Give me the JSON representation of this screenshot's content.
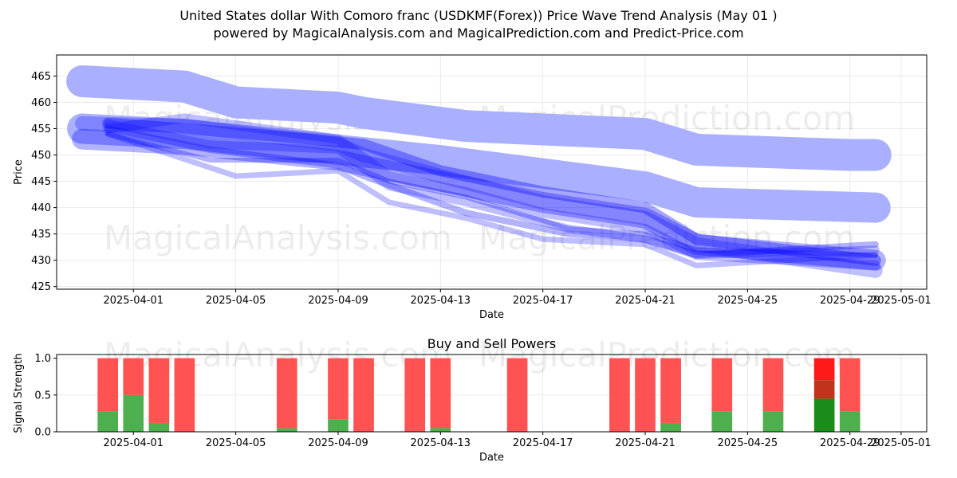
{
  "title_line1": "United States dollar With Comoro franc (USDKMF(Forex)) Price Wave Trend Analysis (May 01 )",
  "title_line2": "powered by MagicalAnalysis.com and MagicalPrediction.com and Predict-Price.com",
  "watermarks": [
    "MagicalAnalysis.com",
    "MagicalPrediction.com"
  ],
  "colors": {
    "wave": "#0000ff",
    "wave_light": "#aab0ff",
    "buy": "#3aa63a",
    "sell": "#ff4a4a",
    "buy_strong": "#1a8c1a",
    "sell_strong": "#ff1a1a",
    "sell_mid": "#c0341d"
  },
  "chart_data": [
    {
      "type": "area",
      "xlabel": "Date",
      "ylabel": "Price",
      "x_ticks": [
        "2025-04-01",
        "2025-04-05",
        "2025-04-09",
        "2025-04-13",
        "2025-04-17",
        "2025-04-21",
        "2025-04-25",
        "2025-04-29",
        "2025-05-01"
      ],
      "y_ticks": [
        425,
        430,
        435,
        440,
        445,
        450,
        455,
        460,
        465
      ],
      "xlim": [
        "2025-03-29",
        "2025-05-02"
      ],
      "ylim": [
        424.5,
        469
      ],
      "grid": true,
      "series": [
        {
          "dates": [
            "2025-03-30",
            "2025-04-03",
            "2025-04-05",
            "2025-04-09",
            "2025-04-10",
            "2025-04-14",
            "2025-04-21",
            "2025-04-23",
            "2025-04-29",
            "2025-04-30"
          ],
          "values": [
            464,
            463,
            460,
            459,
            458,
            455.5,
            454,
            451,
            450,
            450
          ],
          "width": 40,
          "opacity": 0.3
        },
        {
          "dates": [
            "2025-03-30",
            "2025-04-03",
            "2025-04-09",
            "2025-04-13",
            "2025-04-21",
            "2025-04-23",
            "2025-04-30"
          ],
          "values": [
            455,
            454,
            451,
            449,
            444,
            441,
            440
          ],
          "width": 38,
          "opacity": 0.3
        },
        {
          "dates": [
            "2025-03-30",
            "2025-04-03",
            "2025-04-09",
            "2025-04-13",
            "2025-04-17",
            "2025-04-21",
            "2025-04-23",
            "2025-04-30"
          ],
          "values": [
            453,
            452,
            449,
            445,
            441,
            438,
            433,
            430
          ],
          "width": 26,
          "opacity": 0.3
        },
        {
          "dates": [
            "2025-03-30",
            "2025-04-03",
            "2025-04-09",
            "2025-04-10",
            "2025-04-13",
            "2025-04-17",
            "2025-04-21",
            "2025-04-23",
            "2025-04-30"
          ],
          "values": [
            456,
            455.5,
            452,
            450,
            446,
            441,
            438,
            433,
            428
          ],
          "width": 18,
          "opacity": 0.25
        },
        {
          "dates": [
            "2025-03-31",
            "2025-04-03",
            "2025-04-09",
            "2025-04-11",
            "2025-04-14",
            "2025-04-17",
            "2025-04-21",
            "2025-04-23",
            "2025-04-30"
          ],
          "values": [
            455,
            457,
            453,
            446,
            443,
            439,
            436,
            431,
            429
          ],
          "width": 12,
          "opacity": 0.25
        },
        {
          "dates": [
            "2025-03-31",
            "2025-04-04",
            "2025-04-09",
            "2025-04-11",
            "2025-04-14",
            "2025-04-18",
            "2025-04-21",
            "2025-04-23",
            "2025-04-30"
          ],
          "values": [
            456,
            452,
            451,
            444,
            441,
            436,
            434,
            431,
            432
          ],
          "width": 10,
          "opacity": 0.25
        },
        {
          "dates": [
            "2025-03-31",
            "2025-04-04",
            "2025-04-09",
            "2025-04-10",
            "2025-04-14",
            "2025-04-18",
            "2025-04-21",
            "2025-04-23",
            "2025-04-30"
          ],
          "values": [
            455,
            451,
            448,
            446,
            439,
            435,
            434,
            431,
            433
          ],
          "width": 8,
          "opacity": 0.3
        },
        {
          "dates": [
            "2025-03-31",
            "2025-04-04",
            "2025-04-09",
            "2025-04-11",
            "2025-04-14",
            "2025-04-18",
            "2025-04-21",
            "2025-04-23",
            "2025-04-30"
          ],
          "values": [
            454,
            449,
            449,
            445,
            442,
            436,
            435,
            432,
            431
          ],
          "width": 6,
          "opacity": 0.3
        },
        {
          "dates": [
            "2025-03-31",
            "2025-04-05",
            "2025-04-09",
            "2025-04-11",
            "2025-04-14",
            "2025-04-17",
            "2025-04-21",
            "2025-04-23",
            "2025-04-30"
          ],
          "values": [
            454,
            446,
            447,
            441,
            438,
            434,
            433,
            429,
            431
          ],
          "width": 7,
          "opacity": 0.25
        },
        {
          "dates": [
            "2025-03-31",
            "2025-04-03",
            "2025-04-08",
            "2025-04-10",
            "2025-04-13",
            "2025-04-17",
            "2025-04-21",
            "2025-04-23",
            "2025-04-30"
          ],
          "values": [
            456,
            455,
            453,
            452,
            447,
            443,
            440,
            434,
            430
          ],
          "width": 14,
          "opacity": 0.35
        }
      ]
    },
    {
      "type": "bar",
      "title": "Buy and Sell Powers",
      "xlabel": "Date",
      "ylabel": "Signal Strength",
      "x_ticks": [
        "2025-04-01",
        "2025-04-05",
        "2025-04-09",
        "2025-04-13",
        "2025-04-17",
        "2025-04-21",
        "2025-04-25",
        "2025-04-29",
        "2025-05-01"
      ],
      "y_ticks": [
        0.0,
        0.5,
        1.0
      ],
      "xlim": [
        "2025-03-29",
        "2025-05-02"
      ],
      "ylim": [
        0,
        1.05
      ],
      "grid": true,
      "bars": [
        {
          "date": "2025-03-31",
          "buy": 0.28,
          "sell": 0.72
        },
        {
          "date": "2025-04-01",
          "buy": 0.5,
          "sell": 0.5
        },
        {
          "date": "2025-04-02",
          "buy": 0.12,
          "sell": 0.88
        },
        {
          "date": "2025-04-03",
          "buy": 0.0,
          "sell": 1.0
        },
        {
          "date": "2025-04-07",
          "buy": 0.05,
          "sell": 0.95
        },
        {
          "date": "2025-04-09",
          "buy": 0.17,
          "sell": 0.83
        },
        {
          "date": "2025-04-10",
          "buy": 0.0,
          "sell": 1.0
        },
        {
          "date": "2025-04-12",
          "buy": 0.0,
          "sell": 1.0
        },
        {
          "date": "2025-04-13",
          "buy": 0.05,
          "sell": 0.95
        },
        {
          "date": "2025-04-16",
          "buy": 0.0,
          "sell": 1.0
        },
        {
          "date": "2025-04-20",
          "buy": 0.0,
          "sell": 1.0
        },
        {
          "date": "2025-04-21",
          "buy": 0.0,
          "sell": 1.0
        },
        {
          "date": "2025-04-22",
          "buy": 0.12,
          "sell": 0.88
        },
        {
          "date": "2025-04-24",
          "buy": 0.28,
          "sell": 0.72
        },
        {
          "date": "2025-04-26",
          "buy": 0.28,
          "sell": 0.72
        },
        {
          "date": "2025-04-28",
          "buy": 0.45,
          "sell": 0.55,
          "highlight": true
        },
        {
          "date": "2025-04-29",
          "buy": 0.28,
          "sell": 0.72
        }
      ]
    }
  ]
}
